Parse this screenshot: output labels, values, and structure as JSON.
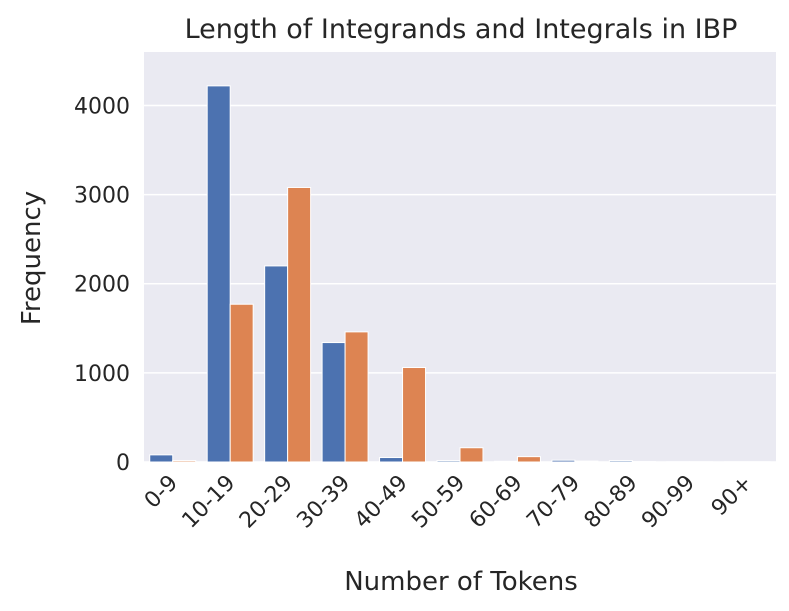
{
  "chart_data": {
    "type": "bar",
    "title": "Length of Integrands and Integrals in IBP",
    "xlabel": "Number of Tokens",
    "ylabel": "Frequency",
    "categories": [
      "0-9",
      "10-19",
      "20-29",
      "30-39",
      "40-49",
      "50-59",
      "60-69",
      "70-79",
      "80-89",
      "90-99",
      "90+"
    ],
    "series": [
      {
        "values": [
          80,
          4220,
          2200,
          1340,
          50,
          15,
          8,
          20,
          15,
          3,
          2
        ],
        "color": "#4c72b0"
      },
      {
        "values": [
          15,
          1770,
          3080,
          1460,
          1060,
          160,
          60,
          10,
          5,
          2,
          2
        ],
        "color": "#dd8452"
      }
    ],
    "ylim": [
      0,
      4600
    ],
    "yticks": [
      0,
      1000,
      2000,
      3000,
      4000
    ],
    "grid": true,
    "legend": "none",
    "background": "#eaeaf2"
  }
}
